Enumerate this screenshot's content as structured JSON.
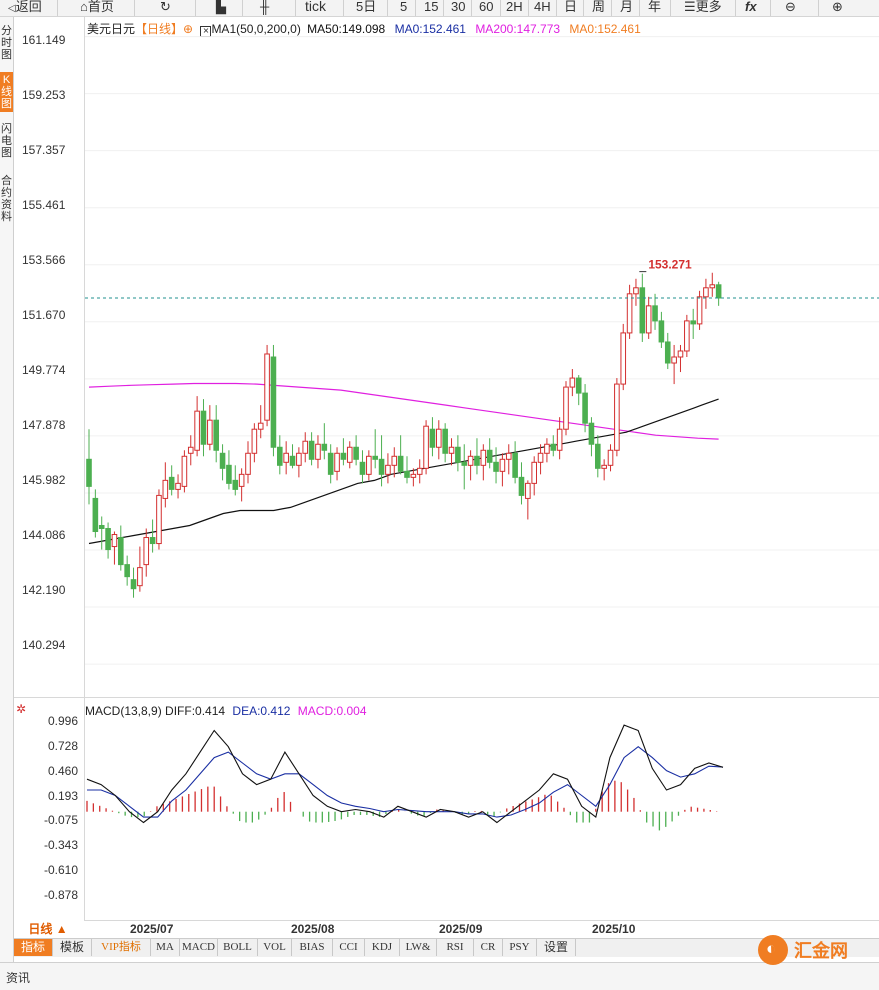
{
  "toolbar": {
    "back": "返回",
    "home": "首页",
    "tick": "tick",
    "periods": [
      "5日",
      "5",
      "15",
      "30",
      "60",
      "2H",
      "4H",
      "日",
      "周",
      "月",
      "年"
    ],
    "more": "更多",
    "fx": "fx"
  },
  "sidebar": [
    "分时图",
    "K线图",
    "闪电图",
    "合约资料"
  ],
  "legend": {
    "symbol": "美元日元",
    "period": "【日线】",
    "ma_name": "MA1(50,0,200,0)",
    "ma50": "MA50:149.098",
    "ma0_a": "MA0:152.461",
    "ma200": "MA200:147.773",
    "ma0_b": "MA0:152.461",
    "color_ma50": "#111111",
    "color_ma0_a": "#1a2fa3",
    "color_ma200": "#e020e0",
    "color_ma0_b": "#f07d22"
  },
  "macd_legend": {
    "name": "MACD(13,8,9)",
    "diff": "DIFF:0.414",
    "dea": "DEA:0.412",
    "macd": "MACD:0.004"
  },
  "high_label": "153.271",
  "price_ticks": [
    "161.149",
    "159.253",
    "157.357",
    "155.461",
    "153.566",
    "151.670",
    "149.774",
    "147.878",
    "145.982",
    "144.086",
    "142.190",
    "140.294"
  ],
  "macd_ticks": [
    "0.996",
    "0.728",
    "0.460",
    "0.193",
    "-0.075",
    "-0.343",
    "-0.610",
    "-0.878"
  ],
  "x_labels": [
    "2025/07",
    "2025/08",
    "2025/09",
    "2025/10"
  ],
  "period_button": "日线 ▲",
  "bottom_tabs": [
    "指标",
    "模板",
    "VIP指标",
    "MA",
    "MACD",
    "BOLL",
    "VOL",
    "BIAS",
    "CCI",
    "KDJ",
    "LW&",
    "RSI",
    "CR",
    "PSY",
    "设置"
  ],
  "status": "资讯",
  "logo": "汇金网",
  "colors": {
    "up": "#d32f2f",
    "down": "#4caf50",
    "accent": "#f07d22",
    "current_line": "#21908f"
  },
  "chart_data": [
    {
      "type": "candlestick",
      "y_range": [
        139.2,
        161.8
      ],
      "current_price": 152.461,
      "high_marker": 153.271,
      "candles": [
        [
          147.1,
          148.1,
          145.6,
          146.2
        ],
        [
          145.8,
          146.1,
          144.5,
          144.7
        ],
        [
          144.9,
          145.2,
          144.1,
          144.8
        ],
        [
          144.8,
          145.0,
          143.8,
          144.1
        ],
        [
          144.2,
          144.7,
          143.6,
          144.6
        ],
        [
          144.5,
          144.9,
          143.4,
          143.6
        ],
        [
          143.6,
          143.9,
          142.9,
          143.2
        ],
        [
          143.1,
          143.5,
          142.5,
          142.8
        ],
        [
          142.9,
          144.2,
          142.7,
          143.5
        ],
        [
          143.6,
          144.8,
          143.2,
          144.5
        ],
        [
          144.5,
          145.1,
          144.0,
          144.3
        ],
        [
          144.3,
          146.1,
          144.1,
          145.9
        ],
        [
          145.8,
          147.0,
          145.5,
          146.4
        ],
        [
          146.5,
          146.9,
          145.9,
          146.1
        ],
        [
          146.1,
          146.6,
          145.8,
          146.3
        ],
        [
          146.2,
          147.4,
          146.0,
          147.2
        ],
        [
          147.3,
          147.9,
          146.9,
          147.5
        ],
        [
          147.4,
          149.2,
          147.2,
          148.7
        ],
        [
          148.7,
          149.1,
          147.2,
          147.6
        ],
        [
          147.6,
          148.9,
          147.4,
          148.4
        ],
        [
          148.4,
          148.9,
          147.0,
          147.4
        ],
        [
          147.3,
          147.6,
          146.4,
          146.8
        ],
        [
          146.9,
          147.4,
          146.1,
          146.3
        ],
        [
          146.4,
          146.9,
          145.9,
          146.1
        ],
        [
          146.2,
          146.8,
          145.7,
          146.6
        ],
        [
          146.6,
          147.7,
          146.3,
          147.3
        ],
        [
          147.3,
          148.3,
          147.0,
          148.1
        ],
        [
          148.1,
          148.9,
          147.8,
          148.3
        ],
        [
          148.4,
          150.9,
          148.2,
          150.6
        ],
        [
          150.5,
          150.9,
          147.2,
          147.5
        ],
        [
          147.5,
          147.9,
          146.6,
          146.9
        ],
        [
          147.0,
          147.7,
          146.6,
          147.3
        ],
        [
          147.2,
          147.6,
          146.8,
          146.9
        ],
        [
          146.9,
          147.5,
          146.5,
          147.3
        ],
        [
          147.3,
          148.0,
          147.0,
          147.7
        ],
        [
          147.7,
          148.0,
          146.9,
          147.1
        ],
        [
          147.1,
          147.9,
          146.8,
          147.6
        ],
        [
          147.6,
          148.3,
          147.1,
          147.4
        ],
        [
          147.3,
          147.6,
          146.3,
          146.6
        ],
        [
          146.7,
          147.5,
          146.4,
          147.3
        ],
        [
          147.3,
          147.8,
          146.9,
          147.1
        ],
        [
          147.0,
          147.7,
          146.8,
          147.5
        ],
        [
          147.5,
          147.9,
          146.9,
          147.1
        ],
        [
          147.0,
          147.4,
          146.3,
          146.6
        ],
        [
          146.6,
          147.4,
          146.4,
          147.2
        ],
        [
          147.2,
          148.1,
          146.8,
          147.1
        ],
        [
          147.1,
          147.9,
          146.2,
          146.6
        ],
        [
          146.6,
          147.3,
          146.3,
          146.9
        ],
        [
          146.9,
          147.5,
          146.5,
          147.2
        ],
        [
          147.2,
          147.9,
          146.6,
          146.7
        ],
        [
          146.7,
          147.2,
          146.3,
          146.5
        ],
        [
          146.5,
          146.8,
          146.2,
          146.6
        ],
        [
          146.6,
          147.1,
          146.3,
          146.8
        ],
        [
          146.8,
          148.4,
          146.6,
          148.2
        ],
        [
          148.1,
          148.5,
          147.2,
          147.5
        ],
        [
          147.5,
          148.4,
          147.1,
          148.1
        ],
        [
          148.1,
          148.3,
          147.0,
          147.3
        ],
        [
          147.3,
          147.8,
          146.9,
          147.5
        ],
        [
          147.5,
          147.9,
          146.7,
          147.0
        ],
        [
          147.0,
          147.6,
          146.1,
          146.9
        ],
        [
          146.9,
          147.4,
          146.4,
          147.2
        ],
        [
          147.2,
          147.8,
          146.6,
          146.9
        ],
        [
          146.9,
          147.6,
          146.4,
          147.4
        ],
        [
          147.4,
          147.8,
          146.8,
          147.0
        ],
        [
          147.0,
          147.5,
          146.3,
          146.7
        ],
        [
          146.7,
          147.3,
          146.2,
          147.1
        ],
        [
          147.1,
          147.6,
          146.6,
          147.3
        ],
        [
          147.3,
          147.7,
          146.3,
          146.5
        ],
        [
          146.5,
          147.0,
          145.6,
          145.9
        ],
        [
          145.8,
          146.4,
          145.1,
          146.3
        ],
        [
          146.3,
          147.2,
          145.9,
          147.0
        ],
        [
          147.0,
          147.6,
          146.6,
          147.3
        ],
        [
          147.3,
          147.8,
          147.0,
          147.6
        ],
        [
          147.6,
          147.9,
          147.2,
          147.4
        ],
        [
          147.4,
          148.5,
          147.1,
          148.1
        ],
        [
          148.1,
          149.7,
          147.9,
          149.5
        ],
        [
          149.5,
          150.1,
          149.2,
          149.8
        ],
        [
          149.8,
          149.9,
          148.9,
          149.3
        ],
        [
          149.3,
          149.6,
          148.0,
          148.3
        ],
        [
          148.3,
          148.5,
          147.2,
          147.6
        ],
        [
          147.6,
          147.9,
          146.5,
          146.8
        ],
        [
          146.8,
          147.1,
          146.4,
          146.9
        ],
        [
          146.9,
          147.6,
          146.7,
          147.4
        ],
        [
          147.4,
          149.8,
          147.2,
          149.6
        ],
        [
          149.6,
          151.6,
          149.4,
          151.3
        ],
        [
          151.3,
          152.9,
          151.1,
          152.6
        ],
        [
          152.6,
          153.1,
          152.2,
          152.8
        ],
        [
          152.8,
          153.27,
          151.0,
          151.3
        ],
        [
          151.3,
          152.5,
          151.1,
          152.2
        ],
        [
          152.2,
          152.6,
          151.4,
          151.7
        ],
        [
          151.7,
          152.0,
          150.8,
          151.0
        ],
        [
          151.0,
          151.3,
          150.1,
          150.3
        ],
        [
          150.3,
          150.9,
          149.6,
          150.5
        ],
        [
          150.5,
          150.9,
          150.0,
          150.7
        ],
        [
          150.7,
          151.9,
          150.5,
          151.7
        ],
        [
          151.7,
          152.1,
          151.1,
          151.6
        ],
        [
          151.6,
          152.7,
          151.4,
          152.5
        ],
        [
          152.5,
          153.1,
          152.1,
          152.8
        ],
        [
          152.8,
          153.3,
          152.5,
          152.9
        ],
        [
          152.9,
          153.0,
          152.2,
          152.461
        ]
      ],
      "ma50": [
        144.3,
        144.35,
        144.4,
        144.45,
        144.5,
        144.55,
        144.6,
        144.65,
        144.7,
        144.75,
        144.8,
        144.85,
        144.9,
        145.0,
        145.1,
        145.2,
        145.3,
        145.35,
        145.4,
        145.4,
        145.4,
        145.4,
        145.4,
        145.45,
        145.5,
        145.6,
        145.7,
        145.8,
        145.9,
        146.0,
        146.1,
        146.2,
        146.3,
        146.35,
        146.4,
        146.5,
        146.6,
        146.65,
        146.7,
        146.75,
        146.8,
        146.85,
        146.9,
        146.95,
        147.0,
        147.05,
        147.1,
        147.15,
        147.2,
        147.25,
        147.3,
        147.35,
        147.4,
        147.45,
        147.5,
        147.55,
        147.6,
        147.65,
        147.7,
        147.75,
        147.8,
        147.85,
        147.9,
        147.95,
        148.0,
        148.1,
        148.2,
        148.3,
        148.4,
        148.5,
        148.6,
        148.7,
        148.8,
        148.9,
        149.0,
        149.1
      ],
      "ma200": [
        149.5,
        149.53,
        149.56,
        149.58,
        149.6,
        149.62,
        149.62,
        149.62,
        149.6,
        149.55,
        149.5,
        149.45,
        149.4,
        149.3,
        149.2,
        149.1,
        149.0,
        148.9,
        148.8,
        148.7,
        148.6,
        148.5,
        148.4,
        148.3,
        148.2,
        148.1,
        148.0,
        147.9,
        147.85,
        147.8,
        147.77
      ],
      "ma50_start": 0,
      "ma200_start": 0
    },
    {
      "type": "macd",
      "y_range": [
        -1.0,
        1.05
      ],
      "diff": [
        0.3,
        0.25,
        0.15,
        0.0,
        -0.1,
        0.0,
        0.2,
        0.35,
        0.55,
        0.75,
        0.6,
        0.35,
        0.25,
        0.3,
        0.55,
        0.35,
        0.15,
        0.05,
        0.0,
        0.02,
        0.0,
        -0.05,
        0.05,
        0.0,
        -0.05,
        0.02,
        0.0,
        -0.05,
        0.0,
        -0.1,
        0.0,
        0.1,
        0.2,
        0.35,
        0.3,
        0.05,
        -0.05,
        0.5,
        0.8,
        0.75,
        0.4,
        0.2,
        0.25,
        0.4,
        0.45,
        0.41
      ],
      "dea": [
        0.2,
        0.2,
        0.15,
        0.05,
        -0.05,
        -0.05,
        0.1,
        0.2,
        0.35,
        0.5,
        0.55,
        0.45,
        0.35,
        0.3,
        0.35,
        0.35,
        0.25,
        0.15,
        0.08,
        0.05,
        0.03,
        0.0,
        0.02,
        0.01,
        0.0,
        0.0,
        0.0,
        -0.02,
        -0.02,
        -0.05,
        -0.03,
        0.02,
        0.08,
        0.18,
        0.25,
        0.15,
        0.05,
        0.25,
        0.5,
        0.6,
        0.5,
        0.38,
        0.32,
        0.35,
        0.42,
        0.412
      ],
      "histogram": [
        0.1,
        0.05,
        0.0,
        -0.05,
        -0.05,
        0.05,
        0.1,
        0.15,
        0.2,
        0.25,
        0.05,
        -0.1,
        -0.1,
        0.0,
        0.2,
        0.0,
        -0.1,
        -0.1,
        -0.08,
        -0.03,
        -0.03,
        -0.05,
        0.03,
        -0.01,
        -0.05,
        0.02,
        0.0,
        -0.03,
        0.02,
        -0.05,
        0.03,
        0.08,
        0.12,
        0.17,
        0.05,
        -0.1,
        -0.1,
        0.25,
        0.3,
        0.15,
        -0.1,
        -0.18,
        -0.07,
        0.05,
        0.03,
        0.004
      ]
    }
  ]
}
